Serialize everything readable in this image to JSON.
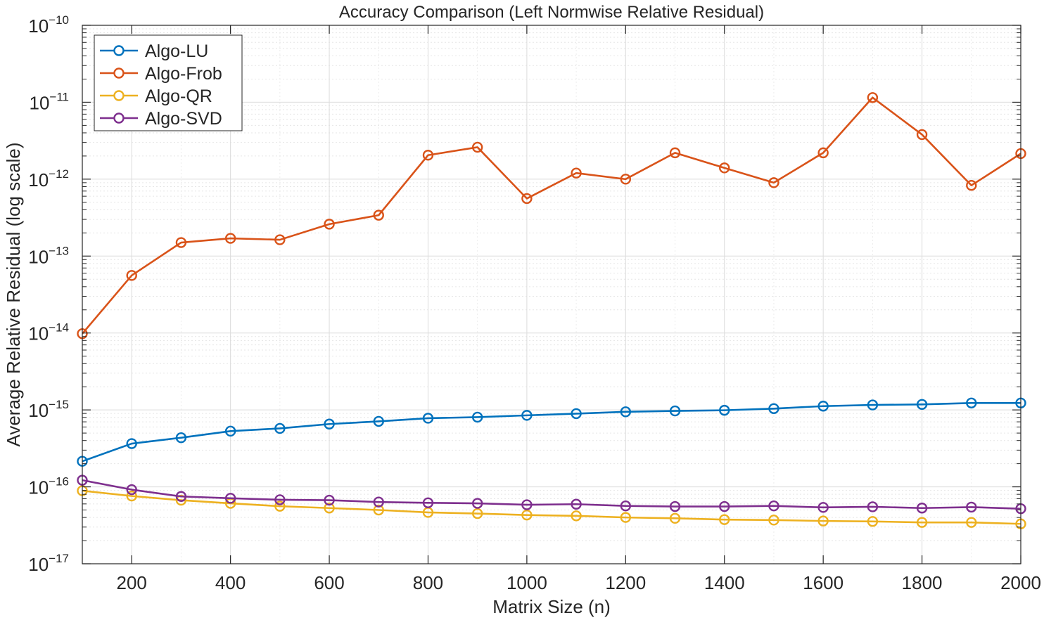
{
  "chart_data": {
    "type": "line",
    "title": "Accuracy Comparison (Left Normwise Relative Residual)",
    "xlabel": "Matrix Size (n)",
    "ylabel": "Average Relative Residual (log scale)",
    "xlim": [
      100,
      2000
    ],
    "ylim": [
      1e-17,
      1e-10
    ],
    "yscale": "log",
    "grid": true,
    "minor_grid": true,
    "legend_position": "top-left",
    "x_ticks": [
      200,
      400,
      600,
      800,
      1000,
      1200,
      1400,
      1600,
      1800,
      2000
    ],
    "y_tick_exponents": [
      -17,
      -16,
      -15,
      -14,
      -13,
      -12,
      -11,
      -10
    ],
    "y_tick_base": "10",
    "x": [
      100,
      200,
      300,
      400,
      500,
      600,
      700,
      800,
      900,
      1000,
      1100,
      1200,
      1300,
      1400,
      1500,
      1600,
      1700,
      1800,
      1900,
      2000
    ],
    "series": [
      {
        "name": "Algo-LU",
        "color": "#0072BD",
        "values": [
          2.15e-16,
          3.65e-16,
          4.35e-16,
          5.3e-16,
          5.75e-16,
          6.55e-16,
          7.1e-16,
          7.8e-16,
          8.05e-16,
          8.5e-16,
          8.95e-16,
          9.45e-16,
          9.7e-16,
          9.9e-16,
          1.04e-15,
          1.12e-15,
          1.16e-15,
          1.18e-15,
          1.23e-15,
          1.23e-15
        ]
      },
      {
        "name": "Algo-Frob",
        "color": "#D95319",
        "values": [
          9.8e-15,
          5.6e-14,
          1.5e-13,
          1.7e-13,
          1.63e-13,
          2.6e-13,
          3.4e-13,
          2.05e-12,
          2.6e-12,
          5.6e-13,
          1.2e-12,
          1e-12,
          2.2e-12,
          1.4e-12,
          9e-13,
          2.2e-12,
          1.15e-11,
          3.8e-12,
          8.3e-13,
          2.15e-12
        ]
      },
      {
        "name": "Algo-QR",
        "color": "#EDB120",
        "values": [
          8.9e-17,
          7.6e-17,
          6.7e-17,
          6.1e-17,
          5.6e-17,
          5.3e-17,
          5e-17,
          4.65e-17,
          4.5e-17,
          4.3e-17,
          4.2e-17,
          4e-17,
          3.9e-17,
          3.75e-17,
          3.7e-17,
          3.6e-17,
          3.55e-17,
          3.45e-17,
          3.45e-17,
          3.3e-17
        ]
      },
      {
        "name": "Algo-SVD",
        "color": "#7E2F8E",
        "values": [
          1.22e-16,
          9.2e-17,
          7.5e-17,
          7.1e-17,
          6.8e-17,
          6.7e-17,
          6.35e-17,
          6.2e-17,
          6.1e-17,
          5.85e-17,
          5.95e-17,
          5.65e-17,
          5.55e-17,
          5.55e-17,
          5.65e-17,
          5.4e-17,
          5.5e-17,
          5.3e-17,
          5.45e-17,
          5.2e-17
        ]
      }
    ]
  }
}
